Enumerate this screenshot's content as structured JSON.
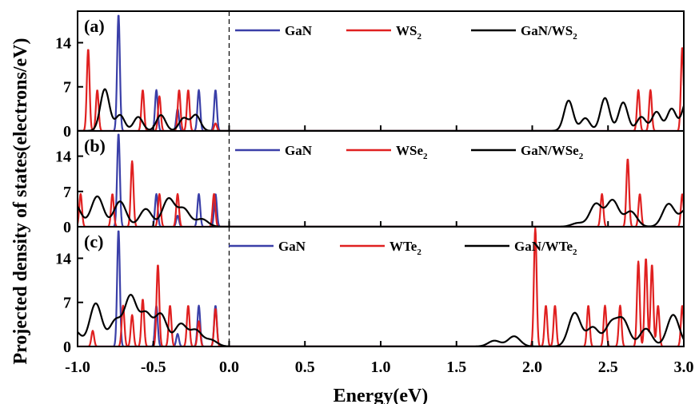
{
  "chart_data": {
    "type": "line",
    "xlabel": "Energy(eV)",
    "ylabel": "Projected density of states(electrons/eV)",
    "xlim": [
      -1.0,
      3.0
    ],
    "ylim": [
      0,
      19
    ],
    "x_ticks": [
      "-1.0",
      "-0.5",
      "0.0",
      "0.5",
      "1.0",
      "1.5",
      "2.0",
      "2.5",
      "3.0"
    ],
    "y_ticks": [
      "0",
      "7",
      "14"
    ],
    "fermi_level": 0.0,
    "grid": false,
    "colors": {
      "GaN": "#3a3fa8",
      "TMD": "#e02020",
      "heterostructure": "#000000",
      "axes": "#000000"
    },
    "panels": [
      {
        "label": "(a)",
        "legend": [
          {
            "base": "GaN",
            "sub": "",
            "color": "#3a3fa8"
          },
          {
            "base": "WS",
            "sub": "2",
            "color": "#e02020"
          },
          {
            "base": "GaN/WS",
            "sub": "2",
            "color": "#000000"
          }
        ],
        "series": [
          {
            "key": "GaN",
            "color": "#3a3fa8",
            "width": 0.009,
            "peaks": [
              [
                -0.73,
                18.5
              ],
              [
                -0.48,
                6.5
              ],
              [
                -0.34,
                3.5
              ],
              [
                -0.2,
                6.5
              ],
              [
                -0.09,
                6.5
              ]
            ]
          },
          {
            "key": "TMD",
            "color": "#e02020",
            "width": 0.009,
            "peaks": [
              [
                -0.93,
                13.0
              ],
              [
                -0.87,
                6.5
              ],
              [
                -0.57,
                6.5
              ],
              [
                -0.46,
                5.5
              ],
              [
                -0.33,
                6.5
              ],
              [
                -0.27,
                6.5
              ],
              [
                -0.09,
                1.2
              ],
              [
                2.7,
                6.5
              ],
              [
                2.78,
                6.5
              ],
              [
                2.99,
                13.3
              ]
            ]
          },
          {
            "key": "heterostructure",
            "color": "#000000",
            "width": 0.03,
            "baseline": 0.02,
            "peaks": [
              [
                -0.82,
                6.6
              ],
              [
                -0.72,
                2.5
              ],
              [
                -0.6,
                2.2
              ],
              [
                -0.45,
                2.5
              ],
              [
                -0.3,
                2.0
              ],
              [
                -0.22,
                2.5
              ],
              [
                2.24,
                4.8
              ],
              [
                2.35,
                2.0
              ],
              [
                2.48,
                5.2
              ],
              [
                2.6,
                4.5
              ],
              [
                2.72,
                2.2
              ],
              [
                2.82,
                3.0
              ],
              [
                2.92,
                3.5
              ],
              [
                3.02,
                4.8
              ]
            ]
          }
        ]
      },
      {
        "label": "(b)",
        "legend": [
          {
            "base": "GaN",
            "sub": "",
            "color": "#3a3fa8"
          },
          {
            "base": "WSe",
            "sub": "2",
            "color": "#e02020"
          },
          {
            "base": "GaN/WSe",
            "sub": "2",
            "color": "#000000"
          }
        ],
        "series": [
          {
            "key": "GaN",
            "color": "#3a3fa8",
            "width": 0.009,
            "peaks": [
              [
                -0.73,
                18.5
              ],
              [
                -0.48,
                6.5
              ],
              [
                -0.34,
                2.2
              ],
              [
                -0.2,
                6.5
              ],
              [
                -0.09,
                6.5
              ]
            ]
          },
          {
            "key": "TMD",
            "color": "#e02020",
            "width": 0.009,
            "peaks": [
              [
                -0.98,
                6.5
              ],
              [
                -0.77,
                6.5
              ],
              [
                -0.64,
                13.0
              ],
              [
                -0.46,
                6.5
              ],
              [
                -0.34,
                6.5
              ],
              [
                -0.1,
                6.5
              ],
              [
                2.46,
                6.5
              ],
              [
                2.63,
                13.5
              ],
              [
                2.71,
                6.5
              ],
              [
                2.99,
                6.5
              ]
            ]
          },
          {
            "key": "heterostructure",
            "color": "#000000",
            "width": 0.04,
            "baseline": 0.02,
            "peaks": [
              [
                -1.02,
                4.5
              ],
              [
                -0.87,
                6.0
              ],
              [
                -0.72,
                5.0
              ],
              [
                -0.55,
                3.5
              ],
              [
                -0.4,
                5.5
              ],
              [
                -0.3,
                3.5
              ],
              [
                -0.18,
                1.5
              ],
              [
                2.3,
                0.7
              ],
              [
                2.42,
                4.5
              ],
              [
                2.53,
                5.2
              ],
              [
                2.65,
                3.0
              ],
              [
                2.9,
                4.5
              ],
              [
                3.02,
                3.5
              ]
            ]
          }
        ]
      },
      {
        "label": "(c)",
        "legend": [
          {
            "base": "GaN",
            "sub": "",
            "color": "#3a3fa8"
          },
          {
            "base": "WTe",
            "sub": "2",
            "color": "#e02020"
          },
          {
            "base": "GaN/WTe",
            "sub": "2",
            "color": "#000000"
          }
        ],
        "series": [
          {
            "key": "GaN",
            "color": "#3a3fa8",
            "width": 0.009,
            "peaks": [
              [
                -0.73,
                18.5
              ],
              [
                -0.48,
                6.5
              ],
              [
                -0.34,
                2.0
              ],
              [
                -0.2,
                6.5
              ],
              [
                -0.09,
                6.5
              ]
            ]
          },
          {
            "key": "TMD",
            "color": "#e02020",
            "width": 0.009,
            "peaks": [
              [
                -0.9,
                2.5
              ],
              [
                -0.7,
                6.5
              ],
              [
                -0.64,
                5.0
              ],
              [
                -0.57,
                7.5
              ],
              [
                -0.47,
                13.0
              ],
              [
                -0.39,
                6.5
              ],
              [
                -0.27,
                6.5
              ],
              [
                -0.2,
                4.0
              ],
              [
                -0.09,
                6.0
              ],
              [
                2.02,
                18.8
              ],
              [
                2.09,
                6.5
              ],
              [
                2.15,
                6.5
              ],
              [
                2.37,
                6.5
              ],
              [
                2.48,
                6.5
              ],
              [
                2.58,
                6.5
              ],
              [
                2.7,
                13.5
              ],
              [
                2.75,
                14.0
              ],
              [
                2.79,
                13.0
              ],
              [
                2.83,
                6.5
              ],
              [
                2.99,
                6.5
              ]
            ]
          },
          {
            "key": "heterostructure",
            "color": "#000000",
            "width": 0.04,
            "baseline": 0.02,
            "peaks": [
              [
                -1.02,
                2.5
              ],
              [
                -0.88,
                6.8
              ],
              [
                -0.75,
                4.0
              ],
              [
                -0.65,
                7.8
              ],
              [
                -0.55,
                5.0
              ],
              [
                -0.45,
                5.0
              ],
              [
                -0.32,
                3.5
              ],
              [
                -0.22,
                2.5
              ],
              [
                -0.12,
                1.0
              ],
              [
                1.75,
                0.9
              ],
              [
                1.88,
                1.6
              ],
              [
                2.28,
                5.3
              ],
              [
                2.4,
                3.0
              ],
              [
                2.52,
                3.5
              ],
              [
                2.6,
                4.0
              ],
              [
                2.75,
                2.8
              ],
              [
                2.93,
                5.0
              ]
            ]
          }
        ]
      }
    ]
  }
}
